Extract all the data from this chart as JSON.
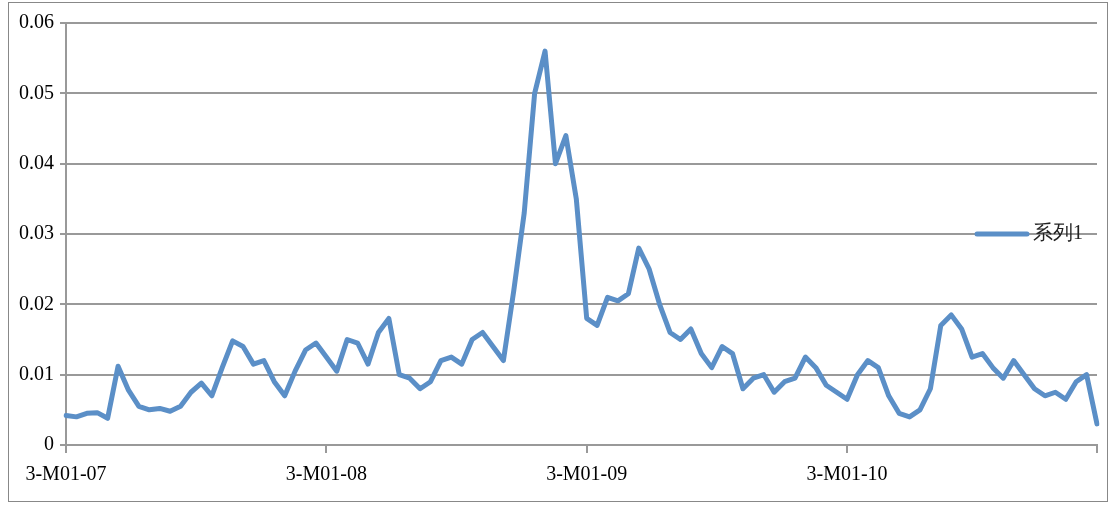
{
  "chart_data": {
    "type": "line",
    "categories": [
      "3-M01-07",
      null,
      null,
      null,
      null,
      null,
      null,
      null,
      null,
      null,
      null,
      null,
      null,
      null,
      null,
      null,
      null,
      null,
      null,
      null,
      null,
      null,
      null,
      null,
      null,
      "3-M01-08",
      null,
      null,
      null,
      null,
      null,
      null,
      null,
      null,
      null,
      null,
      null,
      null,
      null,
      null,
      null,
      null,
      null,
      null,
      null,
      null,
      null,
      null,
      null,
      null,
      "3-M01-09",
      null,
      null,
      null,
      null,
      null,
      null,
      null,
      null,
      null,
      null,
      null,
      null,
      null,
      null,
      null,
      null,
      null,
      null,
      null,
      null,
      null,
      null,
      null,
      null,
      "3-M01-10",
      null,
      null,
      null,
      null,
      null,
      null,
      null,
      null,
      null,
      null,
      null,
      null,
      null,
      null,
      null,
      null,
      null,
      null,
      null,
      null,
      null,
      null,
      null,
      null
    ],
    "series": [
      {
        "name": "系列1",
        "color": "#5b8fc7",
        "values": [
          0.0042,
          0.004,
          0.0045,
          0.0046,
          0.0038,
          0.0112,
          0.0078,
          0.0055,
          0.005,
          0.0052,
          0.0048,
          0.0055,
          0.0075,
          0.0088,
          0.007,
          0.011,
          0.0148,
          0.014,
          0.0115,
          0.012,
          0.009,
          0.007,
          0.0105,
          0.0135,
          0.0145,
          0.0125,
          0.0105,
          0.015,
          0.0145,
          0.0115,
          0.016,
          0.018,
          0.01,
          0.0095,
          0.008,
          0.009,
          0.012,
          0.0125,
          0.0115,
          0.015,
          0.016,
          0.014,
          0.012,
          0.022,
          0.033,
          0.05,
          0.056,
          0.04,
          0.044,
          0.035,
          0.018,
          0.017,
          0.021,
          0.0205,
          0.0215,
          0.028,
          0.025,
          0.02,
          0.016,
          0.015,
          0.0165,
          0.013,
          0.011,
          0.014,
          0.013,
          0.008,
          0.0095,
          0.01,
          0.0075,
          0.009,
          0.0095,
          0.0125,
          0.011,
          0.0085,
          0.0075,
          0.0065,
          0.01,
          0.012,
          0.011,
          0.007,
          0.0045,
          0.004,
          0.005,
          0.008,
          0.017,
          0.0185,
          0.0165,
          0.0125,
          0.013,
          0.011,
          0.0095,
          0.012,
          0.01,
          0.008,
          0.007,
          0.0075,
          0.0065,
          0.009,
          0.01,
          0.003
        ]
      }
    ],
    "ylim": [
      0,
      0.06
    ],
    "yticks": [
      0,
      0.01,
      0.02,
      0.03,
      0.04,
      0.05,
      0.06
    ],
    "grid": "y",
    "legend": "right",
    "marker": "none",
    "line_style": "solid"
  }
}
